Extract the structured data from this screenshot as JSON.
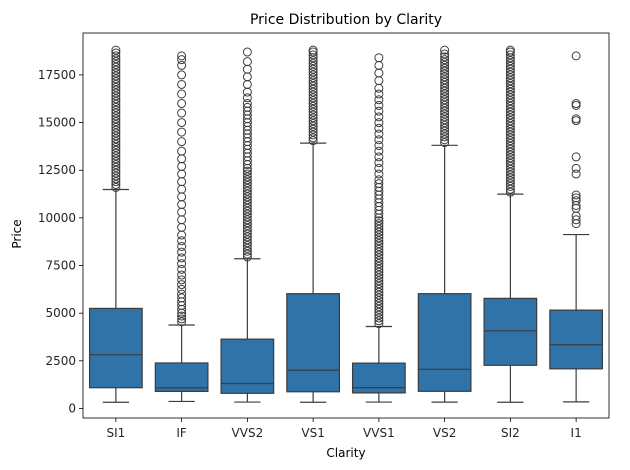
{
  "chart_data": {
    "type": "box",
    "title": "Price Distribution by Clarity",
    "xlabel": "Clarity",
    "ylabel": "Price",
    "ylim": [
      -500,
      19700
    ],
    "yticks": [
      0,
      2500,
      5000,
      7500,
      10000,
      12500,
      15000,
      17500
    ],
    "ytick_labels": [
      "0",
      "2500",
      "5000",
      "7500",
      "10000",
      "12500",
      "15000",
      "17500"
    ],
    "grid": false,
    "color": "#2f73a8",
    "categories": [
      "SI1",
      "IF",
      "VVS2",
      "VS1",
      "VVS1",
      "VS2",
      "SI2",
      "I1"
    ],
    "boxes": [
      {
        "category": "SI1",
        "whisker_low": 326,
        "q1": 1089,
        "median": 2822,
        "q3": 5250,
        "whisker_high": 11490,
        "outliers": [
          11600,
          11750,
          11900,
          12050,
          12200,
          12350,
          12500,
          12650,
          12800,
          12950,
          13100,
          13250,
          13400,
          13550,
          13700,
          13850,
          14000,
          14150,
          14300,
          14450,
          14600,
          14750,
          14900,
          15050,
          15200,
          15350,
          15500,
          15650,
          15800,
          15950,
          16100,
          16250,
          16400,
          16550,
          16700,
          16850,
          17000,
          17150,
          17300,
          17450,
          17600,
          17750,
          17900,
          18050,
          18200,
          18350,
          18500,
          18650,
          18800
        ]
      },
      {
        "category": "IF",
        "whisker_low": 369,
        "q1": 895,
        "median": 1080,
        "q3": 2388,
        "whisker_high": 4380,
        "outliers": [
          4550,
          4700,
          4850,
          5000,
          5200,
          5400,
          5600,
          5800,
          6000,
          6250,
          6500,
          6750,
          7000,
          7300,
          7600,
          7900,
          8200,
          8500,
          8800,
          9100,
          9500,
          9900,
          10300,
          10700,
          11100,
          11500,
          11900,
          12300,
          12700,
          13100,
          13500,
          14000,
          14500,
          15000,
          15500,
          16000,
          16500,
          17000,
          17500,
          18000,
          18300,
          18500
        ]
      },
      {
        "category": "VVS2",
        "whisker_low": 336,
        "q1": 794,
        "median": 1311,
        "q3": 3638,
        "whisker_high": 7855,
        "outliers": [
          7950,
          8100,
          8250,
          8400,
          8550,
          8700,
          8850,
          9000,
          9150,
          9300,
          9450,
          9600,
          9750,
          9900,
          10050,
          10200,
          10350,
          10500,
          10650,
          10800,
          10950,
          11100,
          11250,
          11400,
          11550,
          11700,
          11850,
          12000,
          12150,
          12300,
          12450,
          12600,
          12800,
          13000,
          13200,
          13400,
          13600,
          13800,
          14000,
          14200,
          14400,
          14600,
          14800,
          15000,
          15200,
          15400,
          15600,
          15800,
          16000,
          16300,
          16600,
          17000,
          17400,
          17800,
          18200,
          18700
        ]
      },
      {
        "category": "VS1",
        "whisker_low": 327,
        "q1": 876,
        "median": 2005,
        "q3": 6023,
        "whisker_high": 13922,
        "outliers": [
          14050,
          14200,
          14350,
          14500,
          14650,
          14800,
          14950,
          15100,
          15250,
          15400,
          15550,
          15700,
          15850,
          16000,
          16150,
          16300,
          16450,
          16600,
          16750,
          16900,
          17050,
          17200,
          17350,
          17500,
          17650,
          17800,
          17950,
          18100,
          18250,
          18400,
          18550,
          18700,
          18800
        ]
      },
      {
        "category": "VVS1",
        "whisker_low": 336,
        "q1": 816,
        "median": 1093,
        "q3": 2379,
        "whisker_high": 4300,
        "outliers": [
          4450,
          4600,
          4750,
          4900,
          5050,
          5200,
          5350,
          5500,
          5650,
          5800,
          5950,
          6100,
          6250,
          6400,
          6550,
          6700,
          6850,
          7000,
          7150,
          7300,
          7450,
          7600,
          7750,
          7900,
          8050,
          8200,
          8350,
          8500,
          8650,
          8800,
          8950,
          9100,
          9250,
          9400,
          9550,
          9700,
          9850,
          10000,
          10200,
          10400,
          10600,
          10800,
          11000,
          11200,
          11400,
          11600,
          11800,
          12000,
          12300,
          12600,
          12900,
          13200,
          13500,
          13800,
          14100,
          14400,
          14700,
          15000,
          15300,
          15600,
          15900,
          16200,
          16500,
          16800,
          17200,
          17600,
          18000,
          18400
        ]
      },
      {
        "category": "VS2",
        "whisker_low": 334,
        "q1": 900,
        "median": 2054,
        "q3": 6024,
        "whisker_high": 13806,
        "outliers": [
          13950,
          14100,
          14250,
          14400,
          14550,
          14700,
          14850,
          15000,
          15150,
          15300,
          15450,
          15600,
          15750,
          15900,
          16050,
          16200,
          16350,
          16500,
          16650,
          16800,
          16950,
          17100,
          17250,
          17400,
          17550,
          17700,
          17850,
          18000,
          18150,
          18300,
          18450,
          18600,
          18800
        ]
      },
      {
        "category": "SI2",
        "whisker_low": 326,
        "q1": 2264,
        "median": 4072,
        "q3": 5777,
        "whisker_high": 11248,
        "outliers": [
          11350,
          11500,
          11650,
          11800,
          11950,
          12100,
          12250,
          12400,
          12550,
          12700,
          12850,
          13000,
          13150,
          13300,
          13450,
          13600,
          13750,
          13900,
          14050,
          14200,
          14350,
          14500,
          14650,
          14800,
          14950,
          15100,
          15250,
          15400,
          15550,
          15700,
          15850,
          16000,
          16150,
          16300,
          16450,
          16600,
          16750,
          16900,
          17050,
          17200,
          17350,
          17500,
          17650,
          17800,
          17950,
          18100,
          18250,
          18400,
          18550,
          18700,
          18800
        ]
      },
      {
        "category": "I1",
        "whisker_low": 345,
        "q1": 2080,
        "median": 3344,
        "q3": 5161,
        "whisker_high": 9124,
        "outliers": [
          9700,
          9900,
          10100,
          10500,
          10650,
          10900,
          11050,
          11200,
          12300,
          12600,
          13200,
          15100,
          15200,
          15900,
          16000,
          18500
        ]
      }
    ]
  }
}
